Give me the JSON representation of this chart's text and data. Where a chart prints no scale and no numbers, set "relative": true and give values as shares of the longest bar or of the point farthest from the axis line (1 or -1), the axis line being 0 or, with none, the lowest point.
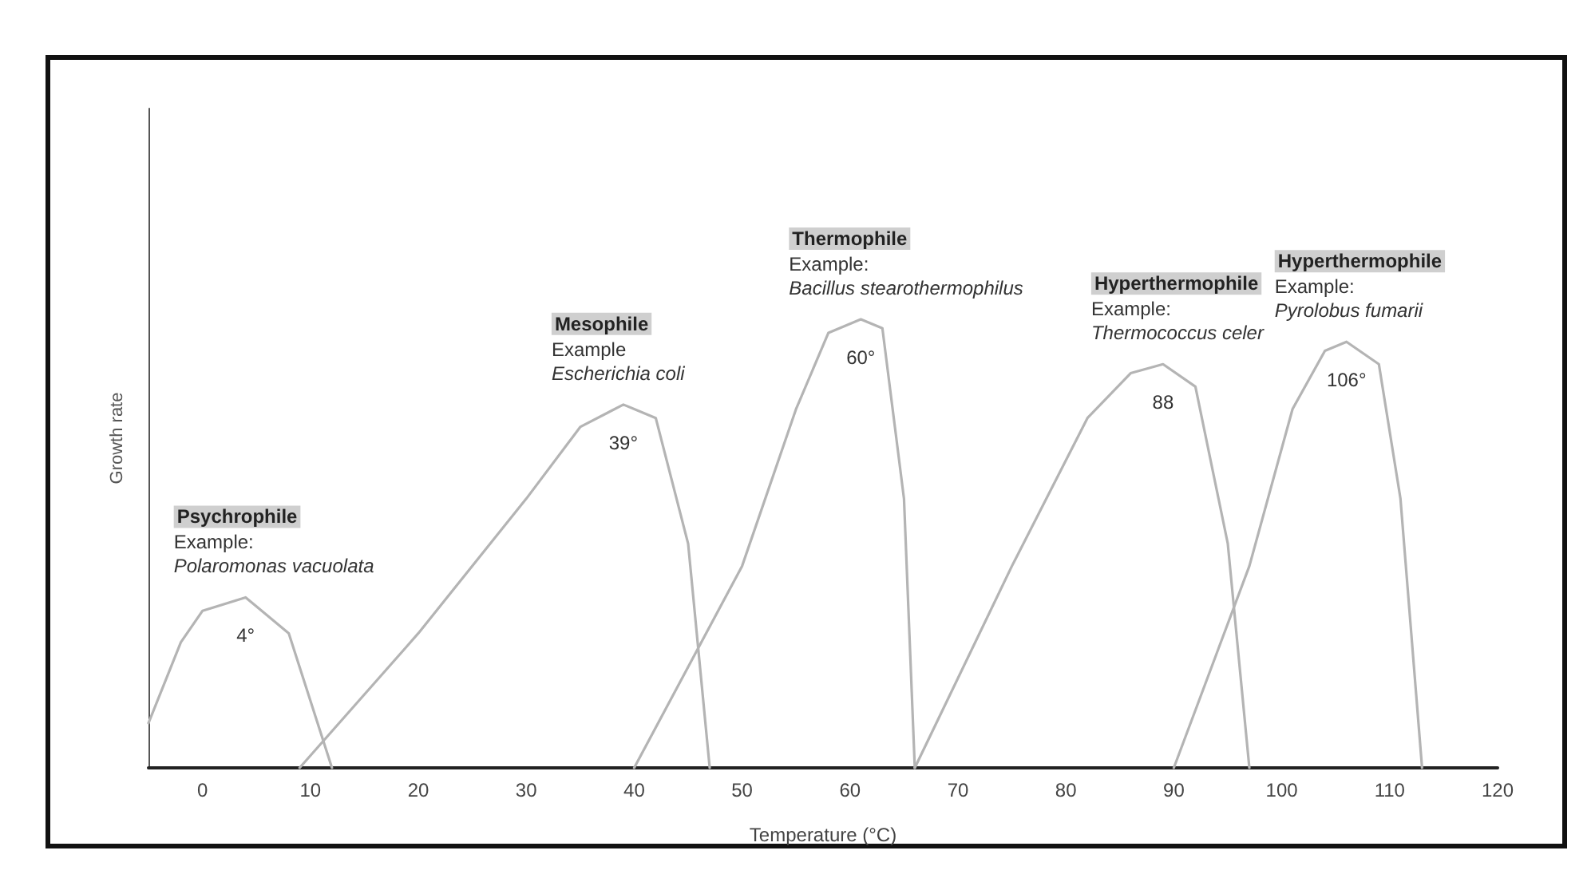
{
  "chart_data": {
    "type": "line",
    "relative": true,
    "xlabel": "Temperature (°C)",
    "ylabel": "Growth rate",
    "xlim": [
      -5,
      120
    ],
    "xticks": [
      0,
      10,
      20,
      30,
      40,
      50,
      60,
      70,
      80,
      90,
      100,
      110,
      120
    ],
    "grid": false,
    "marker": "none",
    "line_style": "solid",
    "series": [
      {
        "color": "#b4b4b4",
        "x": [
          -5,
          -2,
          0,
          4,
          8,
          12
        ],
        "values": [
          0.1,
          0.28,
          0.35,
          0.38,
          0.3,
          0
        ]
      },
      {
        "color": "#b4b4b4",
        "x": [
          9,
          20,
          30,
          35,
          39,
          42,
          45,
          47
        ],
        "values": [
          0,
          0.3,
          0.6,
          0.76,
          0.81,
          0.78,
          0.5,
          0
        ]
      },
      {
        "color": "#b4b4b4",
        "x": [
          40,
          50,
          55,
          58,
          61,
          63,
          65,
          66
        ],
        "values": [
          0,
          0.45,
          0.8,
          0.97,
          1,
          0.98,
          0.6,
          0
        ]
      },
      {
        "color": "#b4b4b4",
        "x": [
          66,
          75,
          82,
          86,
          89,
          92,
          95,
          97
        ],
        "values": [
          0,
          0.45,
          0.78,
          0.88,
          0.9,
          0.85,
          0.5,
          0
        ]
      },
      {
        "color": "#b4b4b4",
        "x": [
          90,
          97,
          101,
          104,
          106,
          109,
          111,
          113
        ],
        "values": [
          0,
          0.45,
          0.8,
          0.93,
          0.95,
          0.9,
          0.6,
          0
        ]
      }
    ],
    "annotations": [
      "Psychrophile\nExample:\nPolaromonas vacuolata",
      "Mesophile\nExample\nEscherichia coli",
      "Thermophile\nExample:\nBacillus stearothermophilus",
      "Hyperthermophile\nExample:\nThermococcus celer",
      "Hyperthermophile\nExample:\nPyrolobus fumarii",
      "4°",
      "39°",
      "60°",
      "88",
      "106°"
    ]
  }
}
